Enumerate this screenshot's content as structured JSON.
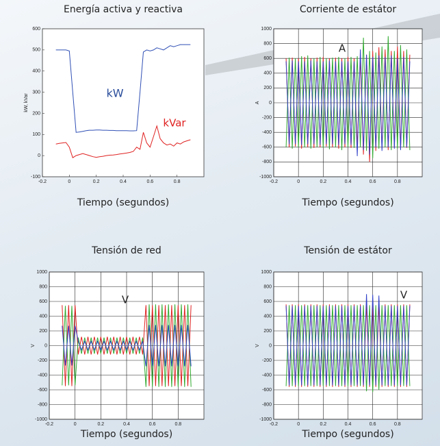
{
  "chart_data": [
    {
      "type": "line",
      "title": "Energía activa y reactiva",
      "xlabel": "Tiempo (segundos)",
      "ylabel": "kW, kVar",
      "xlim": [
        -0.2,
        1.0
      ],
      "ylim": [
        -100,
        600
      ],
      "xticks": [
        -0.2,
        0,
        0.2,
        0.4,
        0.6,
        0.8
      ],
      "yticks": [
        -100,
        0,
        100,
        200,
        300,
        400,
        500,
        600
      ],
      "grid": false,
      "x": [
        -0.1,
        -0.075,
        -0.05,
        -0.025,
        0,
        0.025,
        0.05,
        0.075,
        0.1,
        0.125,
        0.15,
        0.175,
        0.2,
        0.225,
        0.25,
        0.275,
        0.3,
        0.325,
        0.35,
        0.375,
        0.4,
        0.425,
        0.45,
        0.475,
        0.5,
        0.525,
        0.55,
        0.575,
        0.6,
        0.625,
        0.65,
        0.675,
        0.7,
        0.725,
        0.75,
        0.775,
        0.8,
        0.825,
        0.85,
        0.875,
        0.9
      ],
      "series": [
        {
          "color": "#2f4fb5",
          "values": [
            500,
            500,
            500,
            500,
            495,
            300,
            110,
            112,
            115,
            118,
            120,
            120,
            121,
            121,
            120,
            120,
            119,
            119,
            118,
            118,
            118,
            118,
            117,
            117,
            118,
            300,
            490,
            500,
            495,
            500,
            510,
            505,
            500,
            510,
            520,
            515,
            520,
            525,
            525,
            525,
            525
          ]
        },
        {
          "color": "#e02020",
          "values": [
            55,
            58,
            60,
            62,
            40,
            -10,
            0,
            5,
            10,
            5,
            0,
            -5,
            -8,
            -5,
            -3,
            0,
            2,
            3,
            5,
            8,
            10,
            12,
            15,
            20,
            40,
            30,
            110,
            60,
            40,
            90,
            140,
            80,
            60,
            50,
            55,
            45,
            60,
            55,
            65,
            70,
            75
          ]
        }
      ],
      "annotations": [
        {
          "text": "kW",
          "color": "#2a4d9b"
        },
        {
          "text": "kVar",
          "color": "#e02020"
        }
      ]
    },
    {
      "type": "line",
      "title": "Corriente de estátor",
      "xlabel": "Tiempo (segundos)",
      "ylabel": "A",
      "xlim": [
        -0.2,
        1.0
      ],
      "ylim": [
        -1000,
        1000
      ],
      "xticks": [
        -0.2,
        0,
        0.2,
        0.4,
        0.6,
        0.8
      ],
      "yticks": [
        -1000,
        -800,
        -600,
        -400,
        -200,
        0,
        200,
        400,
        600,
        800,
        1000
      ],
      "grid": true,
      "x": [
        -0.1,
        -0.075,
        -0.05,
        -0.025,
        0,
        0.025,
        0.05,
        0.075,
        0.1,
        0.125,
        0.15,
        0.175,
        0.2,
        0.225,
        0.25,
        0.275,
        0.3,
        0.325,
        0.35,
        0.375,
        0.4,
        0.425,
        0.45,
        0.475,
        0.5,
        0.525,
        0.55,
        0.575,
        0.6,
        0.625,
        0.65,
        0.675,
        0.7,
        0.725,
        0.75,
        0.775,
        0.8,
        0.825,
        0.85,
        0.875,
        0.9
      ],
      "series": [
        {
          "color": "#e02020",
          "values": [
            600,
            -600,
            610,
            -590,
            600,
            -620,
            620,
            -600,
            600,
            -610,
            610,
            -600,
            620,
            -590,
            600,
            -600,
            610,
            -620,
            600,
            -600,
            620,
            -610,
            600,
            -600,
            610,
            -700,
            650,
            -800,
            700,
            -650,
            750,
            -620,
            720,
            -640,
            700,
            -600,
            760,
            -620,
            700,
            -610,
            650
          ]
        },
        {
          "color": "#2faa2f",
          "values": [
            -600,
            610,
            -620,
            600,
            -600,
            630,
            -600,
            640,
            -620,
            600,
            -600,
            620,
            -610,
            600,
            -630,
            610,
            -600,
            620,
            -640,
            600,
            -600,
            620,
            -610,
            630,
            -600,
            880,
            -650,
            700,
            -750,
            680,
            -620,
            760,
            -600,
            900,
            -640,
            700,
            -620,
            780,
            -600,
            720,
            -640
          ]
        },
        {
          "color": "#3040c8",
          "values": [
            560,
            -560,
            570,
            -560,
            560,
            -570,
            560,
            -560,
            570,
            -560,
            560,
            -570,
            560,
            -560,
            570,
            -560,
            560,
            -570,
            560,
            -560,
            560,
            -570,
            560,
            -720,
            720,
            -640,
            650,
            -700,
            620,
            -600,
            640,
            -650,
            620,
            -600,
            640,
            -620,
            600,
            -640,
            620,
            -600,
            560
          ]
        }
      ],
      "annotations": [
        {
          "text": "A",
          "color": "#222222"
        }
      ]
    },
    {
      "type": "line",
      "title": "Tensión de red",
      "xlabel": "Tiempo (segundos)",
      "ylabel": "V",
      "xlim": [
        -0.2,
        1.0
      ],
      "ylim": [
        -1000,
        1000
      ],
      "xticks": [
        -0.2,
        0,
        0.2,
        0.4,
        0.6,
        0.8
      ],
      "yticks": [
        -1000,
        -800,
        -600,
        -400,
        -200,
        0,
        200,
        400,
        600,
        800,
        1000
      ],
      "grid": true,
      "x": [
        -0.1,
        -0.075,
        -0.05,
        -0.025,
        0,
        0.025,
        0.05,
        0.075,
        0.1,
        0.125,
        0.15,
        0.175,
        0.2,
        0.225,
        0.25,
        0.275,
        0.3,
        0.325,
        0.35,
        0.375,
        0.4,
        0.425,
        0.45,
        0.475,
        0.5,
        0.525,
        0.55,
        0.575,
        0.6,
        0.625,
        0.65,
        0.675,
        0.7,
        0.725,
        0.75,
        0.775,
        0.8,
        0.825,
        0.85,
        0.875,
        0.9
      ],
      "series": [
        {
          "color": "#e02020",
          "values": [
            550,
            -550,
            550,
            -550,
            550,
            -120,
            120,
            -120,
            120,
            -120,
            120,
            -120,
            120,
            -120,
            120,
            -120,
            120,
            -120,
            120,
            -120,
            120,
            -120,
            120,
            -120,
            120,
            -120,
            550,
            -550,
            550,
            -550,
            550,
            -550,
            550,
            -550,
            550,
            -550,
            550,
            -550,
            550,
            -550,
            550
          ]
        },
        {
          "color": "#2faa2f",
          "values": [
            -540,
            540,
            -540,
            540,
            -540,
            110,
            -110,
            110,
            -110,
            110,
            -110,
            110,
            -110,
            110,
            -110,
            110,
            -110,
            110,
            -110,
            110,
            -110,
            110,
            -110,
            110,
            -110,
            110,
            -560,
            560,
            -560,
            560,
            -560,
            560,
            -560,
            560,
            -560,
            560,
            -560,
            560,
            -560,
            560,
            -560
          ]
        },
        {
          "color": "#3040c8",
          "values": [
            270,
            -270,
            270,
            -270,
            270,
            60,
            -60,
            60,
            -60,
            60,
            -60,
            60,
            -60,
            60,
            -60,
            60,
            -60,
            60,
            -60,
            60,
            -60,
            60,
            -60,
            60,
            -60,
            60,
            -280,
            280,
            -280,
            280,
            -280,
            280,
            -280,
            280,
            -280,
            280,
            -280,
            280,
            -280,
            280,
            -280
          ]
        }
      ],
      "annotations": [
        {
          "text": "V",
          "color": "#222222"
        }
      ]
    },
    {
      "type": "line",
      "title": "Tensión de estátor",
      "xlabel": "Tiempo (segundos)",
      "ylabel": "V",
      "xlim": [
        -0.2,
        1.0
      ],
      "ylim": [
        -1000,
        1000
      ],
      "xticks": [
        -0.2,
        0,
        0.2,
        0.4,
        0.6,
        0.8
      ],
      "yticks": [
        -1000,
        -800,
        -600,
        -400,
        -200,
        0,
        200,
        400,
        600,
        800,
        1000
      ],
      "grid": true,
      "x": [
        -0.1,
        -0.075,
        -0.05,
        -0.025,
        0,
        0.025,
        0.05,
        0.075,
        0.1,
        0.125,
        0.15,
        0.175,
        0.2,
        0.225,
        0.25,
        0.275,
        0.3,
        0.325,
        0.35,
        0.375,
        0.4,
        0.425,
        0.45,
        0.475,
        0.5,
        0.525,
        0.55,
        0.575,
        0.6,
        0.625,
        0.65,
        0.675,
        0.7,
        0.725,
        0.75,
        0.775,
        0.8,
        0.825,
        0.85,
        0.875,
        0.9
      ],
      "series": [
        {
          "color": "#e02020",
          "values": [
            560,
            -560,
            560,
            -560,
            560,
            -560,
            560,
            -560,
            560,
            -560,
            560,
            -560,
            560,
            -560,
            560,
            -560,
            560,
            -560,
            560,
            -560,
            560,
            -560,
            560,
            -560,
            560,
            -560,
            560,
            -560,
            560,
            -560,
            560,
            -560,
            560,
            -560,
            560,
            -560,
            560,
            -560,
            560,
            -560,
            560
          ]
        },
        {
          "color": "#2faa2f",
          "values": [
            -550,
            550,
            -550,
            550,
            -550,
            550,
            -550,
            550,
            -550,
            550,
            -550,
            550,
            -550,
            550,
            -550,
            550,
            -550,
            550,
            -550,
            550,
            -550,
            550,
            -550,
            550,
            -550,
            550,
            -620,
            550,
            -630,
            550,
            -600,
            550,
            -550,
            550,
            -550,
            550,
            -550,
            550,
            -550,
            550,
            -550
          ]
        },
        {
          "color": "#3040c8",
          "values": [
            540,
            -540,
            540,
            -540,
            540,
            -540,
            540,
            -540,
            540,
            -540,
            540,
            -540,
            540,
            -540,
            540,
            -540,
            540,
            -540,
            540,
            -540,
            540,
            -540,
            540,
            -540,
            540,
            -540,
            700,
            -540,
            690,
            -540,
            680,
            -540,
            540,
            -540,
            540,
            -540,
            540,
            -540,
            540,
            -540,
            540
          ]
        }
      ],
      "annotations": [
        {
          "text": "V",
          "color": "#222222"
        }
      ]
    }
  ]
}
